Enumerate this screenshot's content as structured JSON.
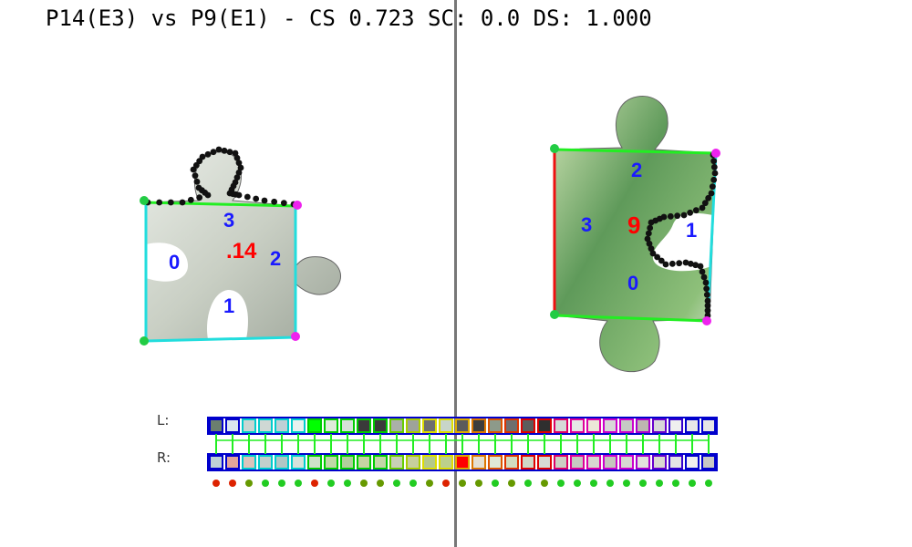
{
  "header": {
    "title": "P14(E3) vs P9(E1) - CS 0.723 SC: 0.0 DS: 1.000"
  },
  "left_piece": {
    "id_label": ".14",
    "edge_labels": [
      "0",
      "1",
      "2",
      "3"
    ],
    "id_color": "#ff0000",
    "edge_label_color": "#1a1aff"
  },
  "right_piece": {
    "id_label": "9",
    "edge_labels": [
      "0",
      "1",
      "2",
      "3"
    ],
    "id_color": "#ff0000",
    "edge_label_color": "#1a1aff"
  },
  "strips": {
    "left_label": "L:",
    "right_label": "R:",
    "left_colors": [
      "#6b7f6f",
      "#d9e7ee",
      "#c9d6d2",
      "#cfd8d4",
      "#bed0d6",
      "#e7f1ef",
      "#00ff00",
      "#e0ebd9",
      "#d6e1d8",
      "#3a3a3a",
      "#3b3b3b",
      "#aab0a8",
      "#9ea39a",
      "#6e6e6e",
      "#c8d5c8",
      "#5b5b5b",
      "#3d3d3d",
      "#8d9a8a",
      "#6f6f6f",
      "#5c5c5c",
      "#2f2f2f",
      "#d6dad8",
      "#e6e6e6",
      "#ece8d8",
      "#d7d7d7",
      "#c5cac4",
      "#bdb7b0",
      "#d8d8d8",
      "#efefef",
      "#e8e8e8",
      "#e6e6e6"
    ],
    "right_colors": [
      "#bfd2d6",
      "#e2a59a",
      "#dcc3bb",
      "#c2cfcc",
      "#b1c6c5",
      "#d5e2db",
      "#cde2c8",
      "#c0d8a8",
      "#b0cf9c",
      "#c5d4a3",
      "#c3d6a8",
      "#c8d0b6",
      "#c7cf9e",
      "#b4c98a",
      "#bcd08c",
      "#ff0000",
      "#e4e0d2",
      "#dfe8d5",
      "#d1dcc0",
      "#cfd7c7",
      "#d7dad4",
      "#ccd0c4",
      "#c7c9c2",
      "#d7d8d0",
      "#c5c5bd",
      "#d8d8d2",
      "#e3e3dd",
      "#dadad0",
      "#e5e5e5",
      "#efefef",
      "#c8c8c4"
    ],
    "border_colors": [
      "#0000cc",
      "#0000cc",
      "#00cccc",
      "#00cccc",
      "#00cccc",
      "#00cccc",
      "#00cc00",
      "#00cc00",
      "#00cc00",
      "#00cc00",
      "#00cc00",
      "#66cc00",
      "#aacc00",
      "#dddd00",
      "#dddd00",
      "#ddaa00",
      "#dd7700",
      "#dd5500",
      "#dd3300",
      "#dd0000",
      "#dd0000",
      "#dd0066",
      "#dd0099",
      "#dd00aa",
      "#cc00cc",
      "#cc00cc",
      "#aa00cc",
      "#6600cc",
      "#3300cc",
      "#0000cc",
      "#0000cc"
    ],
    "dot_colors": [
      "#dd2200",
      "#dd2200",
      "#669900",
      "#22cc22",
      "#22cc22",
      "#22cc22",
      "#dd2200",
      "#22cc22",
      "#22cc22",
      "#669900",
      "#669900",
      "#22cc22",
      "#22cc22",
      "#669900",
      "#dd2200",
      "#669900",
      "#669900",
      "#22cc22",
      "#669900",
      "#22cc22",
      "#669900",
      "#22cc22",
      "#22cc22",
      "#22cc22",
      "#22cc22",
      "#22cc22",
      "#22cc22",
      "#22cc22",
      "#22cc22",
      "#22cc22",
      "#22cc22"
    ]
  },
  "colors": {
    "contour_black": "#111111",
    "corner_green": "#22cc44",
    "corner_magenta": "#ee22ee",
    "edge_cyan": "#22dddd",
    "edge_green": "#22ee22",
    "edge_red": "#ee1111",
    "edge_blue": "#2222ff"
  }
}
